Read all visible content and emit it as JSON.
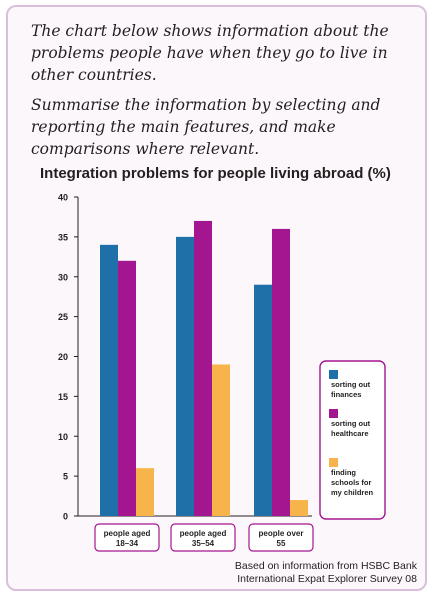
{
  "prompt": {
    "line1": "The chart below shows information about the problems people have when they go to live in other countries.",
    "line2": "Summarise the information by selecting and reporting the main features, and make comparisons where relevant."
  },
  "chart_data": {
    "type": "bar",
    "title": "Integration problems for people living abroad (%)",
    "categories": [
      "people aged 18–34",
      "people aged 35–54",
      "people over 55"
    ],
    "category_lines": [
      [
        "people aged",
        "18–34"
      ],
      [
        "people aged",
        "35–54"
      ],
      [
        "people over",
        "55"
      ]
    ],
    "series": [
      {
        "name": "sorting out finances",
        "name_lines": [
          "sorting out",
          "finances"
        ],
        "color": "#1f6fa8",
        "values": [
          34,
          35,
          29
        ]
      },
      {
        "name": "sorting out healthcare",
        "name_lines": [
          "sorting out",
          "healthcare"
        ],
        "color": "#a3168f",
        "values": [
          32,
          37,
          36
        ]
      },
      {
        "name": "finding schools for my children",
        "name_lines": [
          "finding",
          "schools for",
          "my children"
        ],
        "color": "#f7b44a",
        "values": [
          6,
          19,
          2
        ]
      }
    ],
    "ylim": [
      0,
      40
    ],
    "yticks": [
      0,
      5,
      10,
      15,
      20,
      25,
      30,
      35,
      40
    ],
    "grid": false,
    "legend": "right"
  },
  "source": {
    "line1": "Based on information from HSBC Bank",
    "line2": "International Expat Explorer Survey 08"
  }
}
